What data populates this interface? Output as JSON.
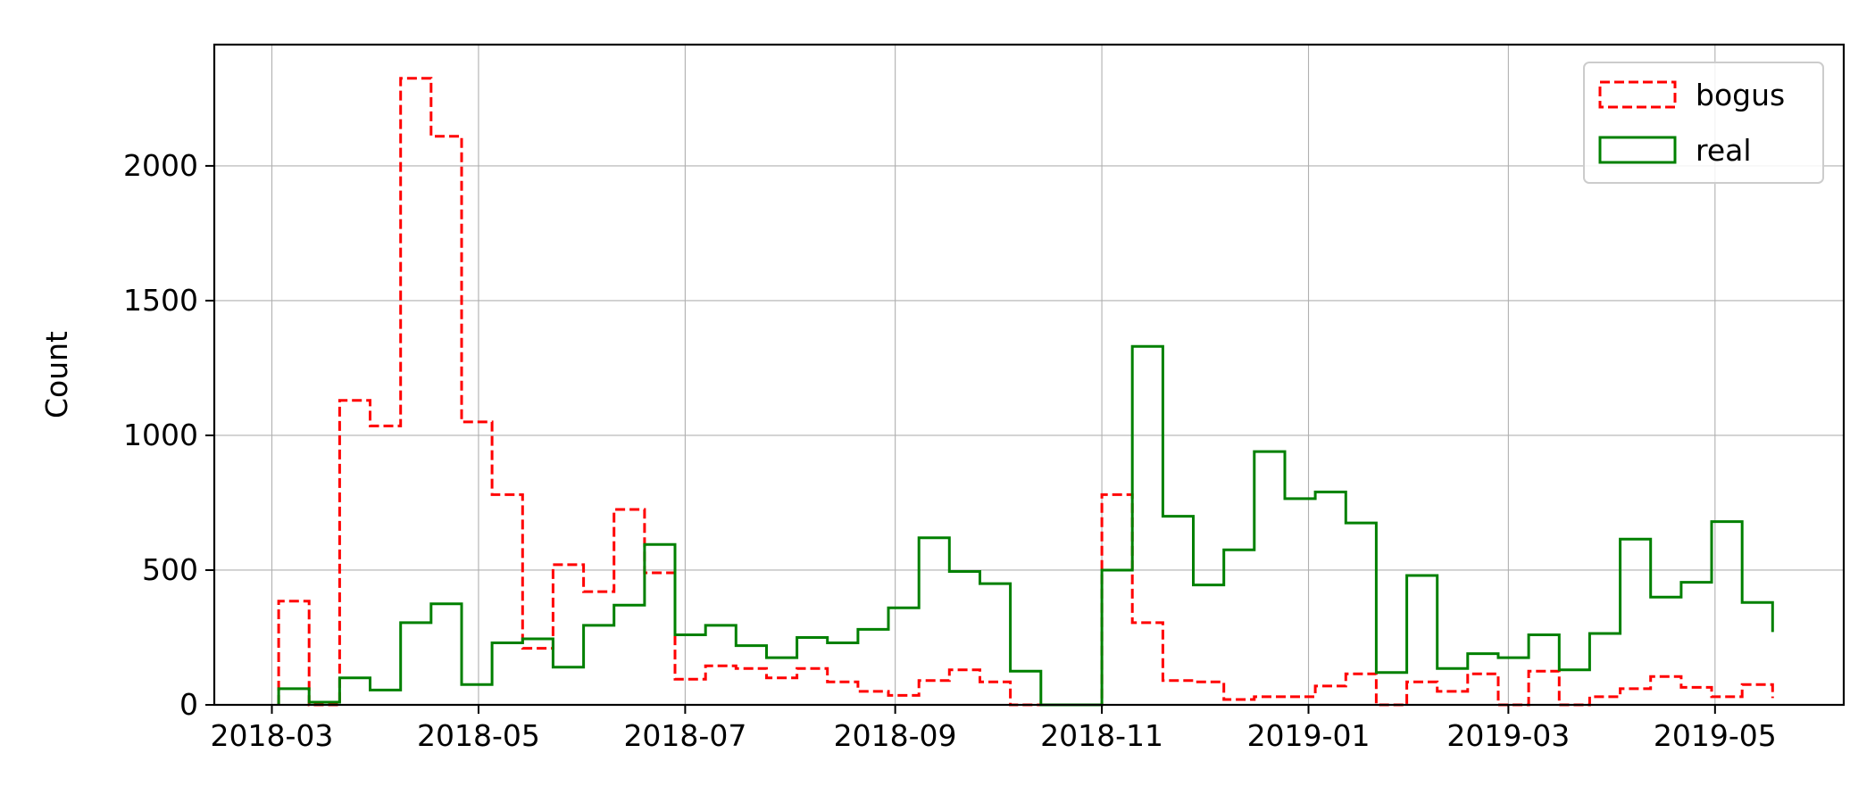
{
  "chart_data": {
    "type": "histogram-step",
    "ylabel": "Count",
    "xlabel": "",
    "title": "",
    "ylim": [
      0,
      2450
    ],
    "yticks": [
      0,
      500,
      1000,
      1500,
      2000
    ],
    "xticks": [
      "2018-03",
      "2018-05",
      "2018-07",
      "2018-09",
      "2018-11",
      "2019-01",
      "2019-03",
      "2019-05"
    ],
    "grid": true,
    "legend_position": "top-right",
    "bin_edges": [
      "2018-03-03",
      "2018-03-12",
      "2018-03-21",
      "2018-03-30",
      "2018-04-08",
      "2018-04-17",
      "2018-04-26",
      "2018-05-05",
      "2018-05-14",
      "2018-05-23",
      "2018-06-01",
      "2018-06-10",
      "2018-06-19",
      "2018-06-28",
      "2018-07-07",
      "2018-07-16",
      "2018-07-25",
      "2018-08-03",
      "2018-08-12",
      "2018-08-21",
      "2018-08-30",
      "2018-09-08",
      "2018-09-17",
      "2018-09-26",
      "2018-10-05",
      "2018-10-14",
      "2018-10-23",
      "2018-11-01",
      "2018-11-10",
      "2018-11-19",
      "2018-11-28",
      "2018-12-07",
      "2018-12-16",
      "2018-12-25",
      "2019-01-03",
      "2019-01-12",
      "2019-01-21",
      "2019-01-30",
      "2019-02-08",
      "2019-02-17",
      "2019-02-26",
      "2019-03-07",
      "2019-03-16",
      "2019-03-25",
      "2019-04-03",
      "2019-04-12",
      "2019-04-21",
      "2019-04-30",
      "2019-05-09",
      "2019-05-18"
    ],
    "series": [
      {
        "name": "bogus",
        "color": "#ff0000",
        "style": "dashed",
        "values": [
          385,
          0,
          1130,
          1035,
          2325,
          2110,
          1050,
          780,
          210,
          520,
          420,
          725,
          490,
          95,
          145,
          135,
          100,
          135,
          85,
          50,
          35,
          90,
          130,
          85,
          0,
          0,
          0,
          780,
          305,
          90,
          85,
          20,
          30,
          30,
          70,
          115,
          0,
          85,
          50,
          115,
          0,
          125,
          0,
          30,
          60,
          105,
          65,
          30,
          75,
          25
        ]
      },
      {
        "name": "real",
        "color": "#008000",
        "style": "solid",
        "values": [
          60,
          10,
          100,
          55,
          305,
          375,
          75,
          230,
          245,
          140,
          295,
          370,
          595,
          260,
          295,
          220,
          175,
          250,
          230,
          280,
          360,
          620,
          495,
          450,
          125,
          0,
          0,
          500,
          1330,
          700,
          445,
          575,
          940,
          765,
          790,
          675,
          120,
          480,
          135,
          190,
          175,
          260,
          130,
          265,
          615,
          400,
          455,
          680,
          380,
          270
        ]
      }
    ]
  }
}
